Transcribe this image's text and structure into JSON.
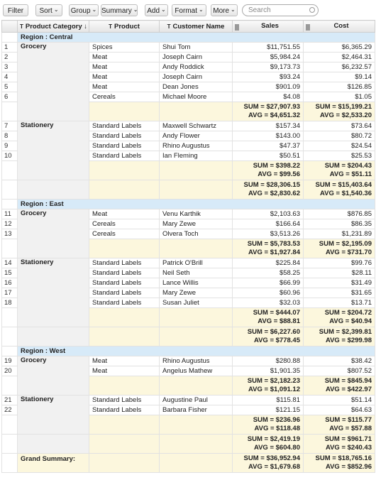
{
  "toolbar": {
    "buttons": [
      "Filter",
      "Sort",
      "Group",
      "Summary",
      "Add",
      "Format",
      "More"
    ],
    "search_placeholder": "Search"
  },
  "columns": [
    "Product Category",
    "Product",
    "Customer Name",
    "Sales",
    "Cost"
  ],
  "regions": [
    {
      "label": "Region : Central",
      "groups": [
        {
          "category": "Grocery",
          "rows": [
            [
              "1",
              "Spices",
              "Shui Tom",
              "$11,751.55",
              "$6,365.29"
            ],
            [
              "2",
              "Meat",
              "Joseph Cairn",
              "$5,984.24",
              "$2,464.31"
            ],
            [
              "3",
              "Meat",
              "Andy Roddick",
              "$9,173.73",
              "$6,232.57"
            ],
            [
              "4",
              "Meat",
              "Joseph Cairn",
              "$93.24",
              "$9.14"
            ],
            [
              "5",
              "Meat",
              "Dean Jones",
              "$901.09",
              "$126.85"
            ],
            [
              "6",
              "Cereals",
              "Michael Moore",
              "$4.08",
              "$1.05"
            ]
          ],
          "summary": {
            "sales": [
              "SUM = $27,907.93",
              "AVG = $4,651.32"
            ],
            "cost": [
              "SUM = $15,199.21",
              "AVG = $2,533.20"
            ]
          }
        },
        {
          "category": "Stationery",
          "rows": [
            [
              "7",
              "Standard Labels",
              "Maxwell Schwartz",
              "$157.34",
              "$73.64"
            ],
            [
              "8",
              "Standard Labels",
              "Andy Flower",
              "$143.00",
              "$80.72"
            ],
            [
              "9",
              "Standard Labels",
              "Rhino Augustus",
              "$47.37",
              "$24.54"
            ],
            [
              "10",
              "Standard Labels",
              "Ian Fleming",
              "$50.51",
              "$25.53"
            ]
          ],
          "summary": {
            "sales": [
              "SUM = $398.22",
              "AVG = $99.56"
            ],
            "cost": [
              "SUM = $204.43",
              "AVG = $51.11"
            ]
          }
        }
      ],
      "summary": {
        "sales": [
          "SUM = $28,306.15",
          "AVG = $2,830.62"
        ],
        "cost": [
          "SUM = $15,403.64",
          "AVG = $1,540.36"
        ]
      }
    },
    {
      "label": "Region : East",
      "groups": [
        {
          "category": "Grocery",
          "rows": [
            [
              "11",
              "Meat",
              "Venu Karthik",
              "$2,103.63",
              "$876.85"
            ],
            [
              "12",
              "Cereals",
              "Mary Zewe",
              "$166.64",
              "$86.35"
            ],
            [
              "13",
              "Cereals",
              "Olvera Toch",
              "$3,513.26",
              "$1,231.89"
            ]
          ],
          "summary": {
            "sales": [
              "SUM = $5,783.53",
              "AVG = $1,927.84"
            ],
            "cost": [
              "SUM = $2,195.09",
              "AVG = $731.70"
            ]
          }
        },
        {
          "category": "Stationery",
          "rows": [
            [
              "14",
              "Standard Labels",
              "Patrick O'Brill",
              "$225.84",
              "$99.76"
            ],
            [
              "15",
              "Standard Labels",
              "Neil Seth",
              "$58.25",
              "$28.11"
            ],
            [
              "16",
              "Standard Labels",
              "Lance Willis",
              "$66.99",
              "$31.49"
            ],
            [
              "17",
              "Standard Labels",
              "Mary Zewe",
              "$60.96",
              "$31.65"
            ],
            [
              "18",
              "Standard Labels",
              "Susan Juliet",
              "$32.03",
              "$13.71"
            ]
          ],
          "summary": {
            "sales": [
              "SUM = $444.07",
              "AVG = $88.81"
            ],
            "cost": [
              "SUM = $204.72",
              "AVG = $40.94"
            ]
          }
        }
      ],
      "summary": {
        "sales": [
          "SUM = $6,227.60",
          "AVG = $778.45"
        ],
        "cost": [
          "SUM = $2,399.81",
          "AVG = $299.98"
        ]
      }
    },
    {
      "label": "Region : West",
      "groups": [
        {
          "category": "Grocery",
          "rows": [
            [
              "19",
              "Meat",
              "Rhino Augustus",
              "$280.88",
              "$38.42"
            ],
            [
              "20",
              "Meat",
              "Angelus Mathew",
              "$1,901.35",
              "$807.52"
            ]
          ],
          "summary": {
            "sales": [
              "SUM = $2,182.23",
              "AVG = $1,091.12"
            ],
            "cost": [
              "SUM = $845.94",
              "AVG = $422.97"
            ]
          }
        },
        {
          "category": "Stationery",
          "rows": [
            [
              "21",
              "Standard Labels",
              "Augustine Paul",
              "$115.81",
              "$51.14"
            ],
            [
              "22",
              "Standard Labels",
              "Barbara Fisher",
              "$121.15",
              "$64.63"
            ]
          ],
          "summary": {
            "sales": [
              "SUM = $236.96",
              "AVG = $118.48"
            ],
            "cost": [
              "SUM = $115.77",
              "AVG = $57.88"
            ]
          }
        }
      ],
      "summary": {
        "sales": [
          "SUM = $2,419.19",
          "AVG = $604.80"
        ],
        "cost": [
          "SUM = $961.71",
          "AVG = $240.43"
        ]
      }
    }
  ],
  "grand_summary": {
    "label": "Grand Summary:",
    "sales": [
      "SUM = $36,952.94",
      "AVG = $1,679.68"
    ],
    "cost": [
      "SUM = $18,765.16",
      "AVG = $852.96"
    ]
  }
}
